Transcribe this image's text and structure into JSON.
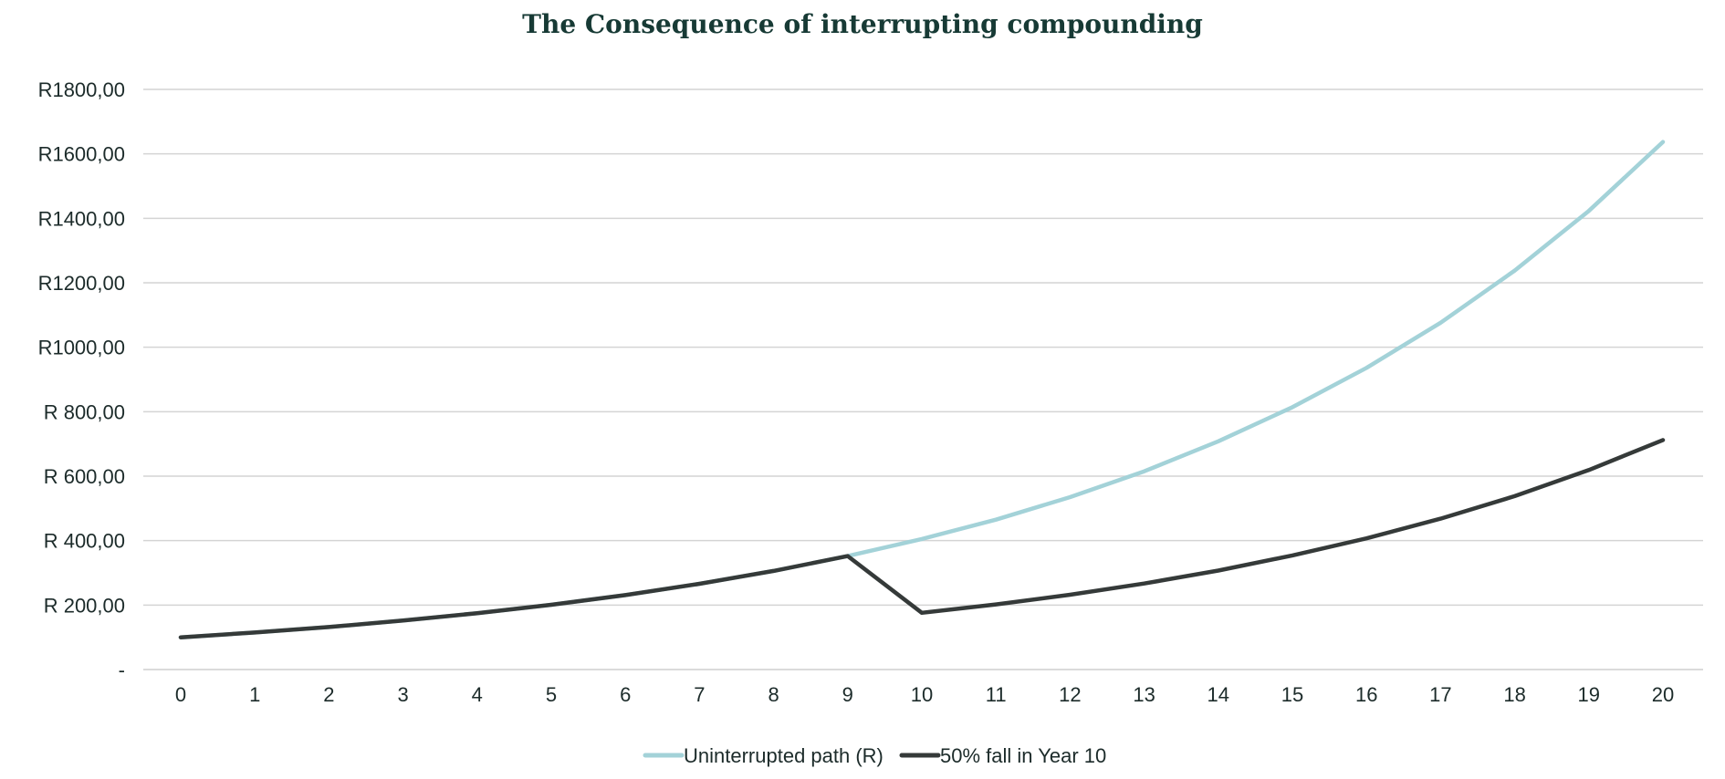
{
  "chart_data": {
    "type": "line",
    "title": "The Consequence of interrupting compounding",
    "xlabel": "",
    "ylabel": "",
    "x": [
      0,
      1,
      2,
      3,
      4,
      5,
      6,
      7,
      8,
      9,
      10,
      11,
      12,
      13,
      14,
      15,
      16,
      17,
      18,
      19,
      20
    ],
    "ylim": [
      0,
      1800
    ],
    "y_ticks": [
      0,
      200,
      400,
      600,
      800,
      1000,
      1200,
      1400,
      1600,
      1800
    ],
    "y_tick_labels": [
      "-",
      "R 200,00",
      "R 400,00",
      "R 600,00",
      "R 800,00",
      "R1000,00",
      "R1200,00",
      "R1400,00",
      "R1600,00",
      "R1800,00"
    ],
    "grid": true,
    "legend_position": "bottom",
    "series": [
      {
        "name": "Uninterrupted path (R)",
        "color": "#a3d2d8",
        "values": [
          100,
          115,
          132,
          152,
          175,
          201,
          231,
          266,
          306,
          352,
          405,
          465,
          535,
          615,
          708,
          814,
          936,
          1076,
          1238,
          1423,
          1637
        ]
      },
      {
        "name": "50% fall in Year 10",
        "color": "#353a39",
        "values": [
          100,
          115,
          132,
          152,
          175,
          201,
          231,
          266,
          306,
          352,
          176,
          202,
          232,
          267,
          307,
          354,
          407,
          468,
          538,
          619,
          712
        ]
      }
    ]
  }
}
